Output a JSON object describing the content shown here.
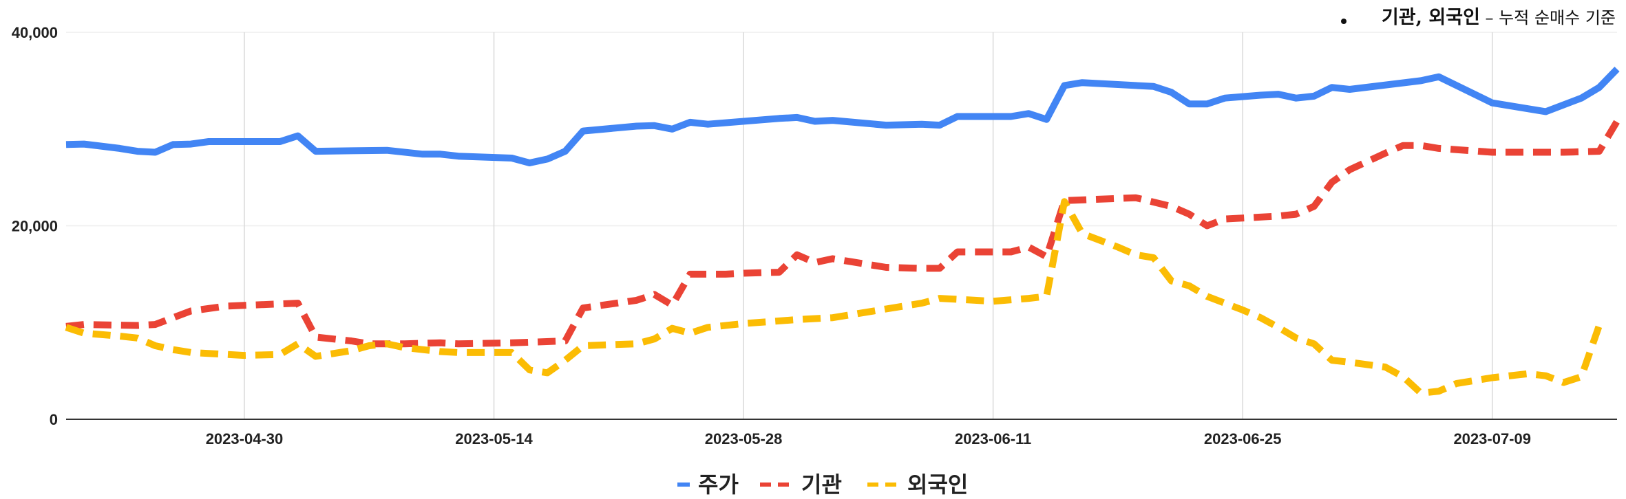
{
  "chart_data": {
    "type": "line",
    "note": "기관, 외국인 – 누적 순매수 기준",
    "note_strong": "기관, 외국인",
    "note_rest": "– 누적 순매수 기준",
    "ylim": [
      0,
      40000
    ],
    "yticks": [
      "0",
      "20,000",
      "40,000"
    ],
    "xticks": [
      "2023-04-30",
      "2023-05-14",
      "2023-05-28",
      "2023-06-11",
      "2023-06-25",
      "2023-07-09"
    ],
    "xticks_day": [
      10,
      24,
      38,
      52,
      66,
      80
    ],
    "xlim_day": [
      0,
      85
    ],
    "legend_position": "bottom",
    "series": [
      {
        "name": "주가",
        "color": "#4285f4",
        "dash": "solid",
        "points": [
          [
            0,
            28400
          ],
          [
            1,
            28450
          ],
          [
            3,
            28000
          ],
          [
            4,
            27700
          ],
          [
            5,
            27600
          ],
          [
            6,
            28400
          ],
          [
            7,
            28450
          ],
          [
            8,
            28700
          ],
          [
            12,
            28700
          ],
          [
            13,
            29300
          ],
          [
            14,
            27700
          ],
          [
            18,
            27800
          ],
          [
            20,
            27400
          ],
          [
            21,
            27400
          ],
          [
            22,
            27200
          ],
          [
            25,
            27000
          ],
          [
            26,
            26500
          ],
          [
            27,
            26900
          ],
          [
            28,
            27700
          ],
          [
            29,
            29800
          ],
          [
            32,
            30300
          ],
          [
            33,
            30350
          ],
          [
            34,
            30000
          ],
          [
            35,
            30700
          ],
          [
            36,
            30500
          ],
          [
            40,
            31100
          ],
          [
            41,
            31200
          ],
          [
            42,
            30800
          ],
          [
            43,
            30900
          ],
          [
            46,
            30400
          ],
          [
            48,
            30500
          ],
          [
            49,
            30400
          ],
          [
            50,
            31300
          ],
          [
            53,
            31300
          ],
          [
            54,
            31600
          ],
          [
            55,
            31000
          ],
          [
            56,
            34500
          ],
          [
            57,
            34800
          ],
          [
            61,
            34400
          ],
          [
            62,
            33800
          ],
          [
            63,
            32600
          ],
          [
            64,
            32600
          ],
          [
            65,
            33200
          ],
          [
            67,
            33500
          ],
          [
            68,
            33600
          ],
          [
            69,
            33200
          ],
          [
            70,
            33400
          ],
          [
            71,
            34300
          ],
          [
            72,
            34100
          ],
          [
            76,
            35000
          ],
          [
            77,
            35400
          ],
          [
            80,
            32700
          ],
          [
            83,
            31800
          ],
          [
            85,
            33200
          ],
          [
            86,
            34300
          ],
          [
            87,
            36200
          ]
        ]
      },
      {
        "name": "기관",
        "color": "#ea4335",
        "dash": "dashed",
        "points": [
          [
            0,
            9600
          ],
          [
            1,
            9800
          ],
          [
            4,
            9700
          ],
          [
            5,
            9800
          ],
          [
            6,
            10500
          ],
          [
            7,
            11200
          ],
          [
            9,
            11700
          ],
          [
            13,
            12000
          ],
          [
            14,
            8500
          ],
          [
            16,
            8100
          ],
          [
            17,
            7800
          ],
          [
            19,
            7800
          ],
          [
            21,
            7900
          ],
          [
            22,
            7800
          ],
          [
            25,
            7900
          ],
          [
            28,
            8100
          ],
          [
            29,
            11500
          ],
          [
            32,
            12300
          ],
          [
            33,
            12900
          ],
          [
            34,
            11800
          ],
          [
            35,
            15000
          ],
          [
            37,
            15000
          ],
          [
            38,
            15100
          ],
          [
            40,
            15200
          ],
          [
            41,
            17000
          ],
          [
            42,
            16200
          ],
          [
            43,
            16600
          ],
          [
            44,
            16300
          ],
          [
            45,
            16000
          ],
          [
            46,
            15700
          ],
          [
            48,
            15600
          ],
          [
            49,
            15600
          ],
          [
            50,
            17300
          ],
          [
            53,
            17300
          ],
          [
            54,
            17800
          ],
          [
            55,
            16800
          ],
          [
            56,
            22600
          ],
          [
            60,
            22900
          ],
          [
            62,
            22000
          ],
          [
            63,
            21200
          ],
          [
            64,
            20000
          ],
          [
            65,
            20700
          ],
          [
            68,
            21000
          ],
          [
            69,
            21200
          ],
          [
            70,
            22000
          ],
          [
            71,
            24500
          ],
          [
            72,
            25800
          ],
          [
            74,
            27500
          ],
          [
            75,
            28300
          ],
          [
            76,
            28300
          ],
          [
            77,
            28000
          ],
          [
            80,
            27600
          ],
          [
            84,
            27600
          ],
          [
            86,
            27700
          ],
          [
            87,
            30800
          ]
        ]
      },
      {
        "name": "외국인",
        "color": "#fbbc04",
        "dash": "dashed",
        "points": [
          [
            0,
            9500
          ],
          [
            1,
            8900
          ],
          [
            3,
            8600
          ],
          [
            4,
            8400
          ],
          [
            5,
            7600
          ],
          [
            6,
            7200
          ],
          [
            7,
            6900
          ],
          [
            8,
            6800
          ],
          [
            10,
            6600
          ],
          [
            12,
            6700
          ],
          [
            13,
            7800
          ],
          [
            14,
            6500
          ],
          [
            16,
            7100
          ],
          [
            17,
            7600
          ],
          [
            18,
            7800
          ],
          [
            19,
            7400
          ],
          [
            21,
            7000
          ],
          [
            22,
            6900
          ],
          [
            25,
            6900
          ],
          [
            26,
            5100
          ],
          [
            27,
            4800
          ],
          [
            28,
            6100
          ],
          [
            29,
            7600
          ],
          [
            32,
            7800
          ],
          [
            33,
            8300
          ],
          [
            34,
            9400
          ],
          [
            35,
            8900
          ],
          [
            36,
            9500
          ],
          [
            38,
            9900
          ],
          [
            41,
            10300
          ],
          [
            43,
            10500
          ],
          [
            44,
            10800
          ],
          [
            46,
            11400
          ],
          [
            48,
            12000
          ],
          [
            49,
            12500
          ],
          [
            51,
            12300
          ],
          [
            52,
            12200
          ],
          [
            54,
            12500
          ],
          [
            55,
            12700
          ],
          [
            56,
            22500
          ],
          [
            57,
            19200
          ],
          [
            59,
            17800
          ],
          [
            60,
            17000
          ],
          [
            61,
            16700
          ],
          [
            62,
            14300
          ],
          [
            63,
            13800
          ],
          [
            64,
            12700
          ],
          [
            65,
            12000
          ],
          [
            66,
            11300
          ],
          [
            67,
            10500
          ],
          [
            68,
            9500
          ],
          [
            69,
            8400
          ],
          [
            70,
            7800
          ],
          [
            71,
            6100
          ],
          [
            72,
            5900
          ],
          [
            74,
            5400
          ],
          [
            75,
            4400
          ],
          [
            76,
            2700
          ],
          [
            77,
            2900
          ],
          [
            78,
            3700
          ],
          [
            80,
            4300
          ],
          [
            82,
            4700
          ],
          [
            83,
            4500
          ],
          [
            84,
            3800
          ],
          [
            85,
            4400
          ],
          [
            86,
            9700
          ]
        ]
      }
    ]
  }
}
